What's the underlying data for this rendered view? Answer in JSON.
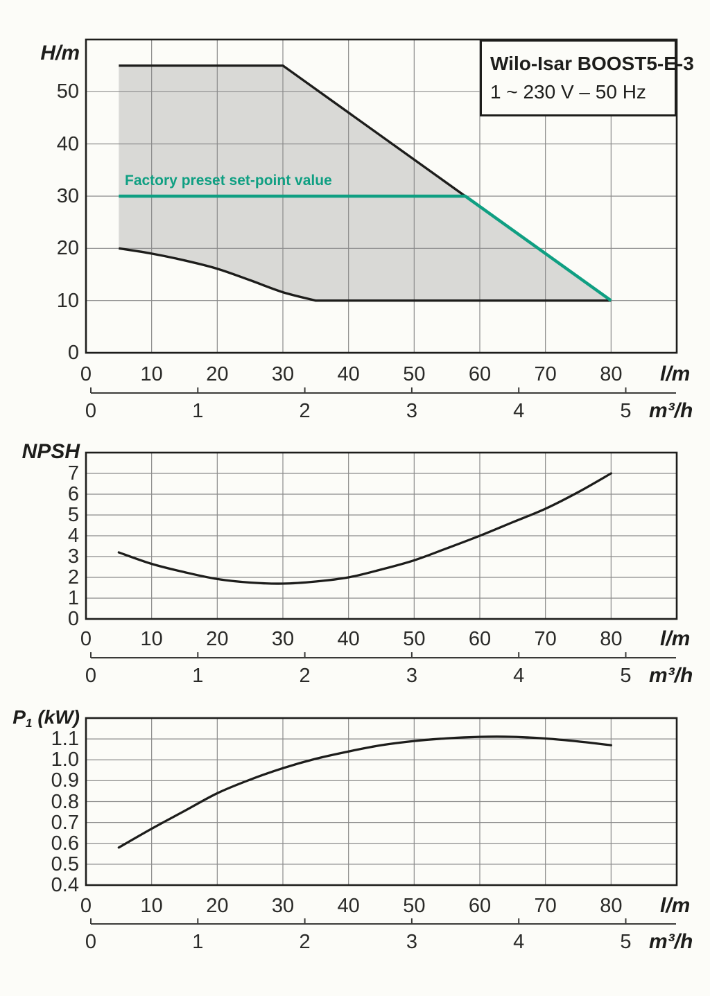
{
  "title_box": {
    "line1": "Wilo-Isar BOOST5-E-3",
    "line2": "1 ~ 230 V – 50 Hz"
  },
  "units": {
    "flow_lm": "l/m",
    "flow_m3h": "m³/h"
  },
  "x_axis": {
    "lm_tick_labels": [
      "0",
      "10",
      "20",
      "30",
      "40",
      "50",
      "60",
      "70",
      "80"
    ],
    "m3h_tick_labels": [
      "0",
      "1",
      "2",
      "3",
      "4",
      "5"
    ]
  },
  "colors": {
    "accent_green": "#0f9f82",
    "envelope_fill": "#d9d9d6",
    "curve_ink": "#1d1d1b",
    "grid": "#8a8a8a",
    "background": "#fcfcf8"
  },
  "chart_data": [
    {
      "id": "head-envelope",
      "type": "area",
      "ylabel": "H/m",
      "xlabel_primary": "l/m",
      "xlabel_secondary": "m³/h",
      "xlim": [
        0,
        90
      ],
      "ylim": [
        0,
        60
      ],
      "y_tick_labels": [
        "0",
        "10",
        "20",
        "30",
        "40",
        "50"
      ],
      "envelope_upper": [
        [
          5,
          55
        ],
        [
          30,
          55
        ],
        [
          80,
          10
        ]
      ],
      "envelope_lower": [
        [
          5,
          20
        ],
        [
          10,
          19
        ],
        [
          15,
          17.7
        ],
        [
          20,
          16.1
        ],
        [
          25,
          13.9
        ],
        [
          30,
          11.6
        ],
        [
          35,
          10
        ],
        [
          80,
          10
        ]
      ],
      "setpoint": {
        "label": "Factory preset set-point value",
        "points": [
          [
            5,
            30
          ],
          [
            57.8,
            30
          ],
          [
            80,
            10
          ]
        ]
      }
    },
    {
      "id": "npsh",
      "type": "line",
      "ylabel": "NPSH",
      "xlabel_primary": "l/m",
      "xlabel_secondary": "m³/h",
      "xlim": [
        0,
        90
      ],
      "ylim": [
        0,
        8
      ],
      "y_tick_labels": [
        "0",
        "1",
        "2",
        "3",
        "4",
        "5",
        "6",
        "7"
      ],
      "points": [
        [
          5,
          3.2
        ],
        [
          10,
          2.65
        ],
        [
          15,
          2.25
        ],
        [
          20,
          1.92
        ],
        [
          25,
          1.75
        ],
        [
          30,
          1.7
        ],
        [
          35,
          1.8
        ],
        [
          40,
          2.0
        ],
        [
          45,
          2.38
        ],
        [
          50,
          2.82
        ],
        [
          55,
          3.4
        ],
        [
          60,
          4.0
        ],
        [
          65,
          4.65
        ],
        [
          70,
          5.3
        ],
        [
          75,
          6.1
        ],
        [
          80,
          7.0
        ]
      ]
    },
    {
      "id": "power",
      "type": "line",
      "ylabel_parts": {
        "base": "P",
        "sub": "1",
        "rest": " (kW)"
      },
      "xlabel_primary": "l/m",
      "xlabel_secondary": "m³/h",
      "xlim": [
        0,
        90
      ],
      "ylim": [
        0.4,
        1.2
      ],
      "y_tick_labels": [
        "0.4",
        "0.5",
        "0.6",
        "0.7",
        "0.8",
        "0.9",
        "1.0",
        "1.1"
      ],
      "points": [
        [
          5,
          0.58
        ],
        [
          10,
          0.67
        ],
        [
          15,
          0.755
        ],
        [
          20,
          0.84
        ],
        [
          25,
          0.905
        ],
        [
          30,
          0.96
        ],
        [
          35,
          1.005
        ],
        [
          40,
          1.04
        ],
        [
          45,
          1.07
        ],
        [
          50,
          1.09
        ],
        [
          55,
          1.103
        ],
        [
          60,
          1.11
        ],
        [
          65,
          1.11
        ],
        [
          70,
          1.102
        ],
        [
          75,
          1.088
        ],
        [
          80,
          1.07
        ]
      ]
    }
  ]
}
